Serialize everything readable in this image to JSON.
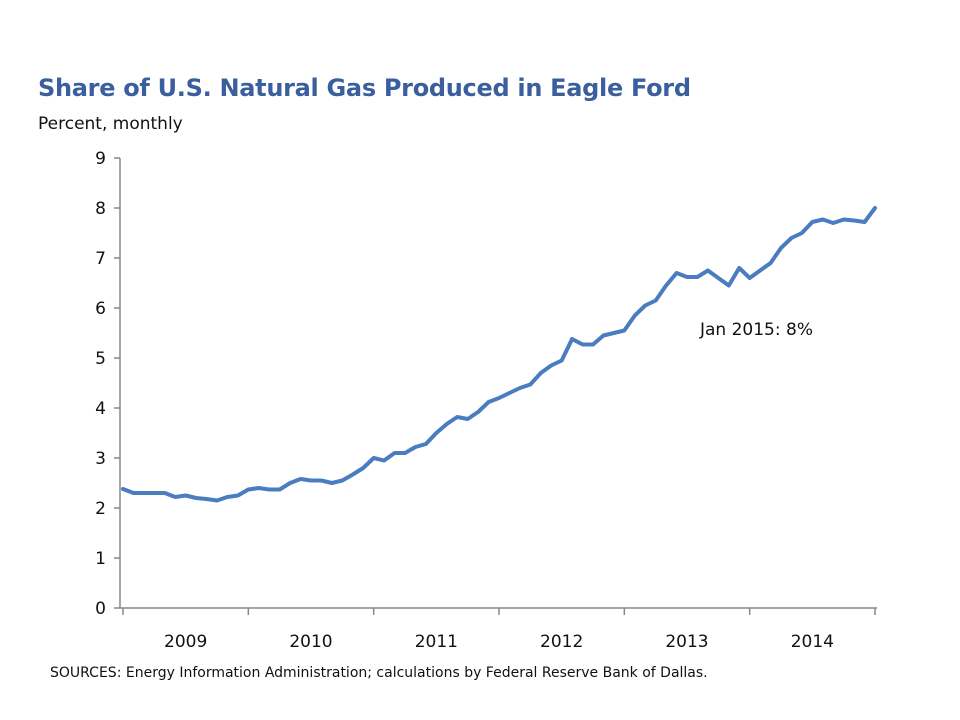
{
  "chart_data": {
    "type": "line",
    "title": "Share of U.S. Natural Gas Produced in Eagle Ford",
    "subtitle": "Percent, monthly",
    "xlabel": "",
    "ylabel": "",
    "ylim": [
      0,
      9
    ],
    "y_ticks": [
      "0",
      "1",
      "2",
      "3",
      "4",
      "5",
      "6",
      "7",
      "8",
      "9"
    ],
    "x_tick_labels": [
      "2009",
      "2010",
      "2011",
      "2012",
      "2013",
      "2014"
    ],
    "x_range": [
      "2009-01",
      "2015-01"
    ],
    "grid": false,
    "legend": "none",
    "line_color": "#4a7cc0",
    "annotation": "Jan 2015: 8%",
    "series": [
      {
        "x": [
          "2009-01",
          "2009-02",
          "2009-03",
          "2009-04",
          "2009-05",
          "2009-06",
          "2009-07",
          "2009-08",
          "2009-09",
          "2009-10",
          "2009-11",
          "2009-12",
          "2010-01",
          "2010-02",
          "2010-03",
          "2010-04",
          "2010-05",
          "2010-06",
          "2010-07",
          "2010-08",
          "2010-09",
          "2010-10",
          "2010-11",
          "2010-12",
          "2011-01",
          "2011-02",
          "2011-03",
          "2011-04",
          "2011-05",
          "2011-06",
          "2011-07",
          "2011-08",
          "2011-09",
          "2011-10",
          "2011-11",
          "2011-12",
          "2012-01",
          "2012-02",
          "2012-03",
          "2012-04",
          "2012-05",
          "2012-06",
          "2012-07",
          "2012-08",
          "2012-09",
          "2012-10",
          "2012-11",
          "2012-12",
          "2013-01",
          "2013-02",
          "2013-03",
          "2013-04",
          "2013-05",
          "2013-06",
          "2013-07",
          "2013-08",
          "2013-09",
          "2013-10",
          "2013-11",
          "2013-12",
          "2014-01",
          "2014-02",
          "2014-03",
          "2014-04",
          "2014-05",
          "2014-06",
          "2014-07",
          "2014-08",
          "2014-09",
          "2014-10",
          "2014-11",
          "2014-12",
          "2015-01"
        ],
        "values": [
          2.38,
          2.3,
          2.3,
          2.3,
          2.3,
          2.22,
          2.25,
          2.2,
          2.18,
          2.15,
          2.22,
          2.25,
          2.37,
          2.4,
          2.37,
          2.37,
          2.5,
          2.58,
          2.55,
          2.55,
          2.5,
          2.55,
          2.67,
          2.8,
          3.0,
          2.95,
          3.1,
          3.1,
          3.22,
          3.28,
          3.5,
          3.68,
          3.82,
          3.78,
          3.92,
          4.12,
          4.2,
          4.3,
          4.4,
          4.47,
          4.7,
          4.85,
          4.95,
          5.38,
          5.27,
          5.27,
          5.45,
          5.5,
          5.55,
          5.85,
          6.05,
          6.15,
          6.45,
          6.7,
          6.62,
          6.62,
          6.75,
          6.6,
          6.45,
          6.8,
          6.6,
          6.75,
          6.9,
          7.2,
          7.4,
          7.5,
          7.72,
          7.77,
          7.7,
          7.77,
          7.75,
          7.72,
          8.0
        ]
      }
    ]
  },
  "source_text": "SOURCES: Energy Information Administration; calculations by Federal Reserve Bank of Dallas."
}
